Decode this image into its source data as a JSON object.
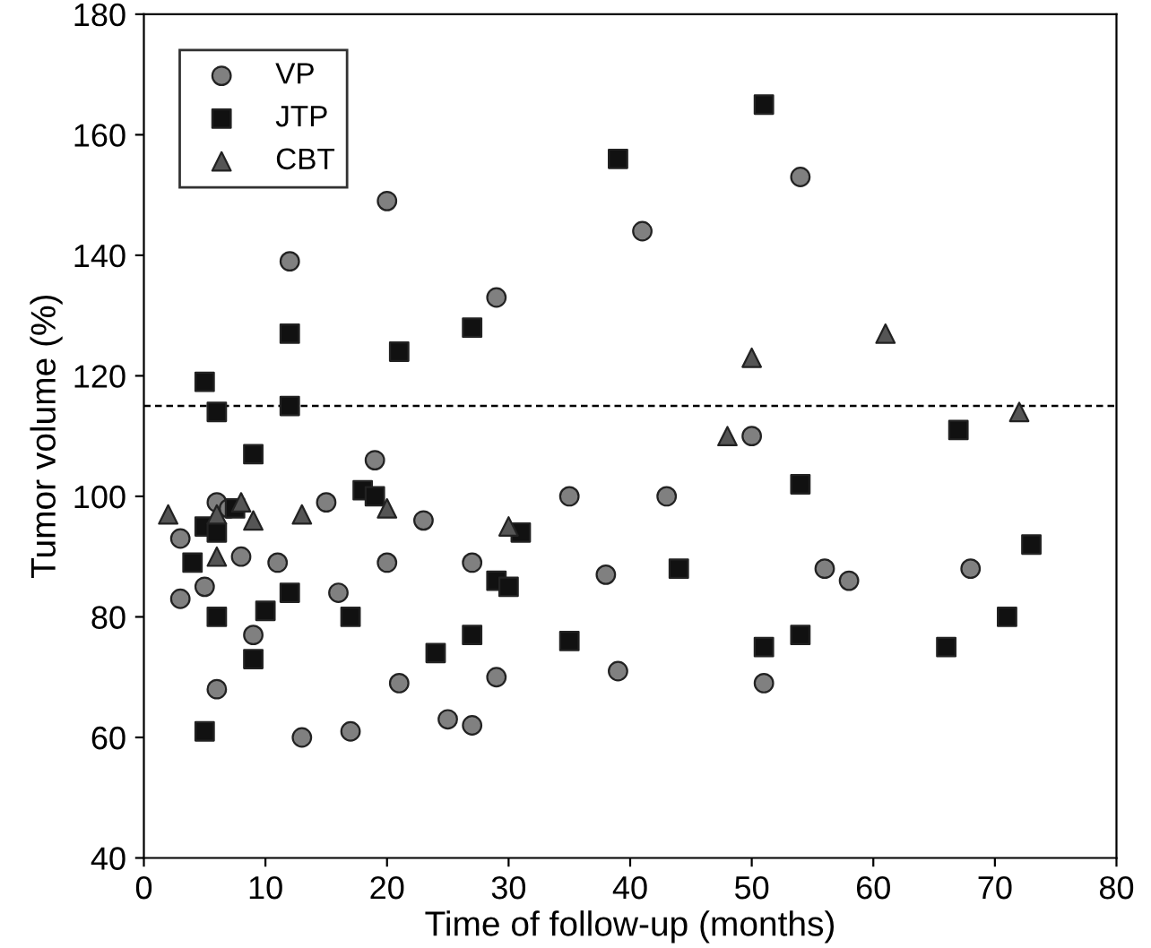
{
  "chart_data": {
    "type": "scatter",
    "xlabel": "Time of follow-up (months)",
    "ylabel": "Tumor volume (%)",
    "xlim": [
      0,
      80
    ],
    "xticks": [
      0,
      10,
      20,
      30,
      40,
      50,
      60,
      70,
      80
    ],
    "ylim": [
      40,
      180
    ],
    "yticks": [
      40,
      60,
      80,
      100,
      120,
      140,
      160,
      180
    ],
    "grid": false,
    "legend": "top left",
    "ref_lines": [
      {
        "axis": "y",
        "value": 115,
        "line_style": "dashed",
        "color": "#000000"
      }
    ],
    "series": [
      {
        "name": "VP",
        "color": "#808080",
        "marker": "circle",
        "x": [
          3,
          3,
          5,
          6,
          6,
          7,
          8,
          9,
          11,
          12,
          13,
          15,
          16,
          17,
          19,
          20,
          20,
          21,
          23,
          25,
          27,
          27,
          29,
          29,
          35,
          38,
          39,
          41,
          43,
          50,
          51,
          54,
          56,
          58,
          68
        ],
        "values": [
          93,
          83,
          85,
          99,
          68,
          98,
          90,
          77,
          89,
          139,
          60,
          99,
          84,
          61,
          106,
          149,
          89,
          69,
          96,
          63,
          62,
          89,
          133,
          70,
          100,
          87,
          71,
          144,
          100,
          110,
          69,
          153,
          88,
          86,
          88
        ]
      },
      {
        "name": "JTP",
        "color": "#111111",
        "marker": "square",
        "x": [
          4,
          5,
          5,
          5,
          6,
          6,
          6,
          7.5,
          9,
          9,
          10,
          12,
          12,
          12,
          17,
          18,
          19,
          21,
          24,
          27,
          27,
          29,
          30,
          31,
          35,
          39,
          44,
          51,
          51,
          54,
          54,
          66,
          67,
          71,
          73
        ],
        "values": [
          89,
          119,
          95,
          61,
          114,
          94,
          80,
          98,
          107,
          73,
          81,
          127,
          115,
          84,
          80,
          101,
          100,
          124,
          74,
          128,
          77,
          86,
          85,
          94,
          76,
          156,
          88,
          165,
          75,
          102,
          77,
          75,
          111,
          80,
          92
        ]
      },
      {
        "name": "CBT",
        "color": "#555555",
        "marker": "triangle",
        "x": [
          2,
          6,
          6,
          8,
          9,
          13,
          20,
          30,
          48,
          50,
          61,
          72
        ],
        "values": [
          97,
          97,
          90,
          99,
          96,
          97,
          98,
          95,
          110,
          123,
          127,
          114
        ]
      }
    ]
  }
}
